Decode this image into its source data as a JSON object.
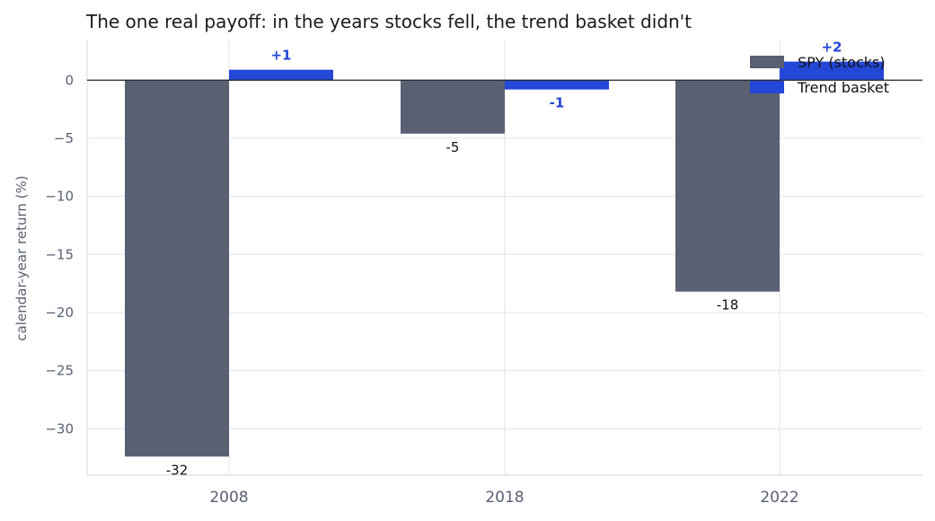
{
  "title": "The one real payoff: in the years stocks fell, the trend basket didn't",
  "chart_data": {
    "type": "bar",
    "categories": [
      "2008",
      "2018",
      "2022"
    ],
    "series": [
      {
        "name": "SPY (stocks)",
        "values": [
          -32.4,
          -4.6,
          -18.2
        ],
        "labels": [
          "-32",
          "-5",
          "-18"
        ],
        "color": "#5a6072"
      },
      {
        "name": "Trend basket",
        "values": [
          0.9,
          -0.8,
          1.6
        ],
        "labels": [
          "+1",
          "-1",
          "+2"
        ],
        "color": "#2347d6"
      }
    ],
    "xlabel": "",
    "ylabel": "calendar-year return (%)",
    "ylim": [
      -34,
      3.5
    ],
    "yticks": [
      0,
      -5,
      -10,
      -15,
      -20,
      -25,
      -30
    ],
    "ytick_labels": [
      "0",
      "−5",
      "−10",
      "−15",
      "−20",
      "−25",
      "−30"
    ],
    "grid": true,
    "legend": "top-right"
  }
}
